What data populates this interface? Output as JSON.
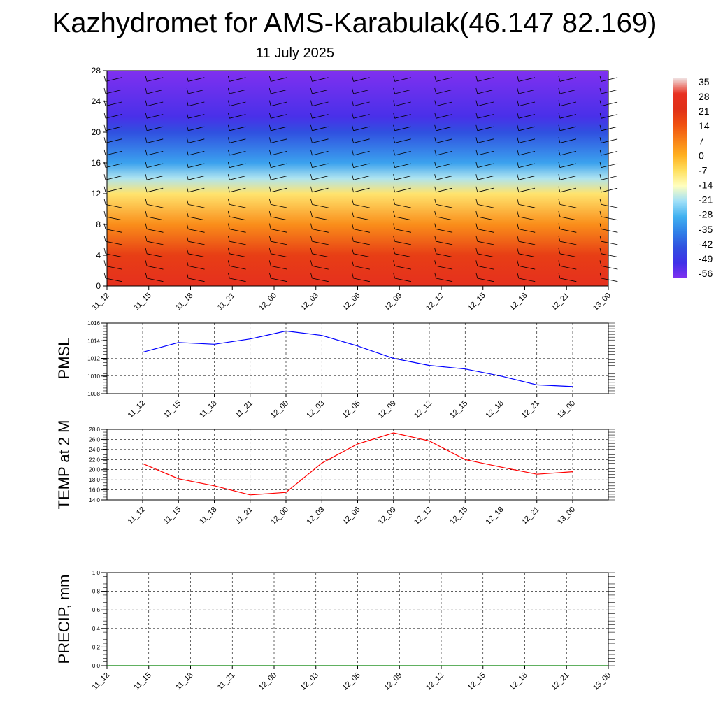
{
  "header": {
    "title": "Kazhydromet for AMS-Karabulak(46.147 82.169)",
    "subtitle": "11 July 2025"
  },
  "chart_data": [
    {
      "type": "heatmap",
      "title": "",
      "x_tick_labels": [
        "11_12",
        "11_15",
        "11_18",
        "11_21",
        "12_00",
        "12_03",
        "12_06",
        "12_09",
        "12_12",
        "12_15",
        "12_18",
        "12_21",
        "13_00"
      ],
      "y_tick_labels": [
        "0",
        "4",
        "8",
        "12",
        "16",
        "20",
        "24",
        "28"
      ],
      "ylim": [
        0,
        28
      ],
      "colorbar": {
        "labels": [
          "35",
          "28",
          "21",
          "14",
          "7",
          "0",
          "-7",
          "-14",
          "-21",
          "-28",
          "-35",
          "-42",
          "-49",
          "-56"
        ],
        "colors": [
          "#f0e0e0",
          "#e83020",
          "#e03018",
          "#f05010",
          "#f88018",
          "#ffb020",
          "#ffe060",
          "#ffffc0",
          "#a0e0f8",
          "#40b0f0",
          "#3080e8",
          "#3050e0",
          "#4030e8",
          "#8030f0"
        ]
      },
      "field_note_rows": [
        {
          "height": 0,
          "temperature": 26
        },
        {
          "height": 4,
          "temperature": 18
        },
        {
          "height": 8,
          "temperature": 5
        },
        {
          "height": 12,
          "temperature": -8
        },
        {
          "height": 14,
          "temperature": -20
        },
        {
          "height": 16,
          "temperature": -30
        },
        {
          "height": 20,
          "temperature": -42
        },
        {
          "height": 22,
          "temperature": -50
        },
        {
          "height": 28,
          "temperature": -56
        }
      ],
      "grid": false
    },
    {
      "type": "line",
      "ylabel": "PMSL",
      "categories": [
        "11_12",
        "11_15",
        "11_18",
        "11_21",
        "12_00",
        "12_03",
        "12_06",
        "12_09",
        "12_12",
        "12_15",
        "12_18",
        "12_21",
        "13_00"
      ],
      "y_tick_labels": [
        "1008",
        "1010",
        "1012",
        "1014",
        "1016"
      ],
      "ylim": [
        1008,
        1016
      ],
      "series": [
        {
          "color": "#0000ff",
          "values": [
            1012.7,
            1013.8,
            1013.6,
            1014.2,
            1015.1,
            1014.6,
            1013.4,
            1012.0,
            1011.2,
            1010.8,
            1010.0,
            1009.0,
            1008.8
          ]
        }
      ],
      "grid": true
    },
    {
      "type": "line",
      "ylabel": "TEMP at 2 M",
      "categories": [
        "11_12",
        "11_15",
        "11_18",
        "11_21",
        "12_00",
        "12_03",
        "12_06",
        "12_09",
        "12_12",
        "12_15",
        "12_18",
        "12_21",
        "13_00"
      ],
      "y_tick_labels": [
        "14.0",
        "16.0",
        "18.0",
        "20.0",
        "22.0",
        "24.0",
        "26.0",
        "28.0"
      ],
      "ylim": [
        14,
        28
      ],
      "series": [
        {
          "color": "#ff0000",
          "values": [
            21.2,
            18.2,
            16.8,
            15.0,
            15.5,
            21.3,
            25.1,
            27.3,
            25.7,
            22.0,
            20.5,
            19.1,
            19.6
          ]
        }
      ],
      "grid": true
    },
    {
      "type": "line",
      "ylabel": "PRECIP, mm",
      "categories": [
        "11_12",
        "11_15",
        "11_18",
        "11_21",
        "12_00",
        "12_03",
        "12_06",
        "12_09",
        "12_12",
        "12_15",
        "12_18",
        "12_21",
        "13_00"
      ],
      "y_tick_labels": [
        "0.0",
        "0.2",
        "0.4",
        "0.6",
        "0.8",
        "1.0"
      ],
      "ylim": [
        0,
        1
      ],
      "series": [
        {
          "color": "#008000",
          "values": [
            0,
            0,
            0,
            0,
            0,
            0,
            0,
            0,
            0,
            0,
            0,
            0,
            0
          ]
        }
      ],
      "grid": true
    }
  ]
}
